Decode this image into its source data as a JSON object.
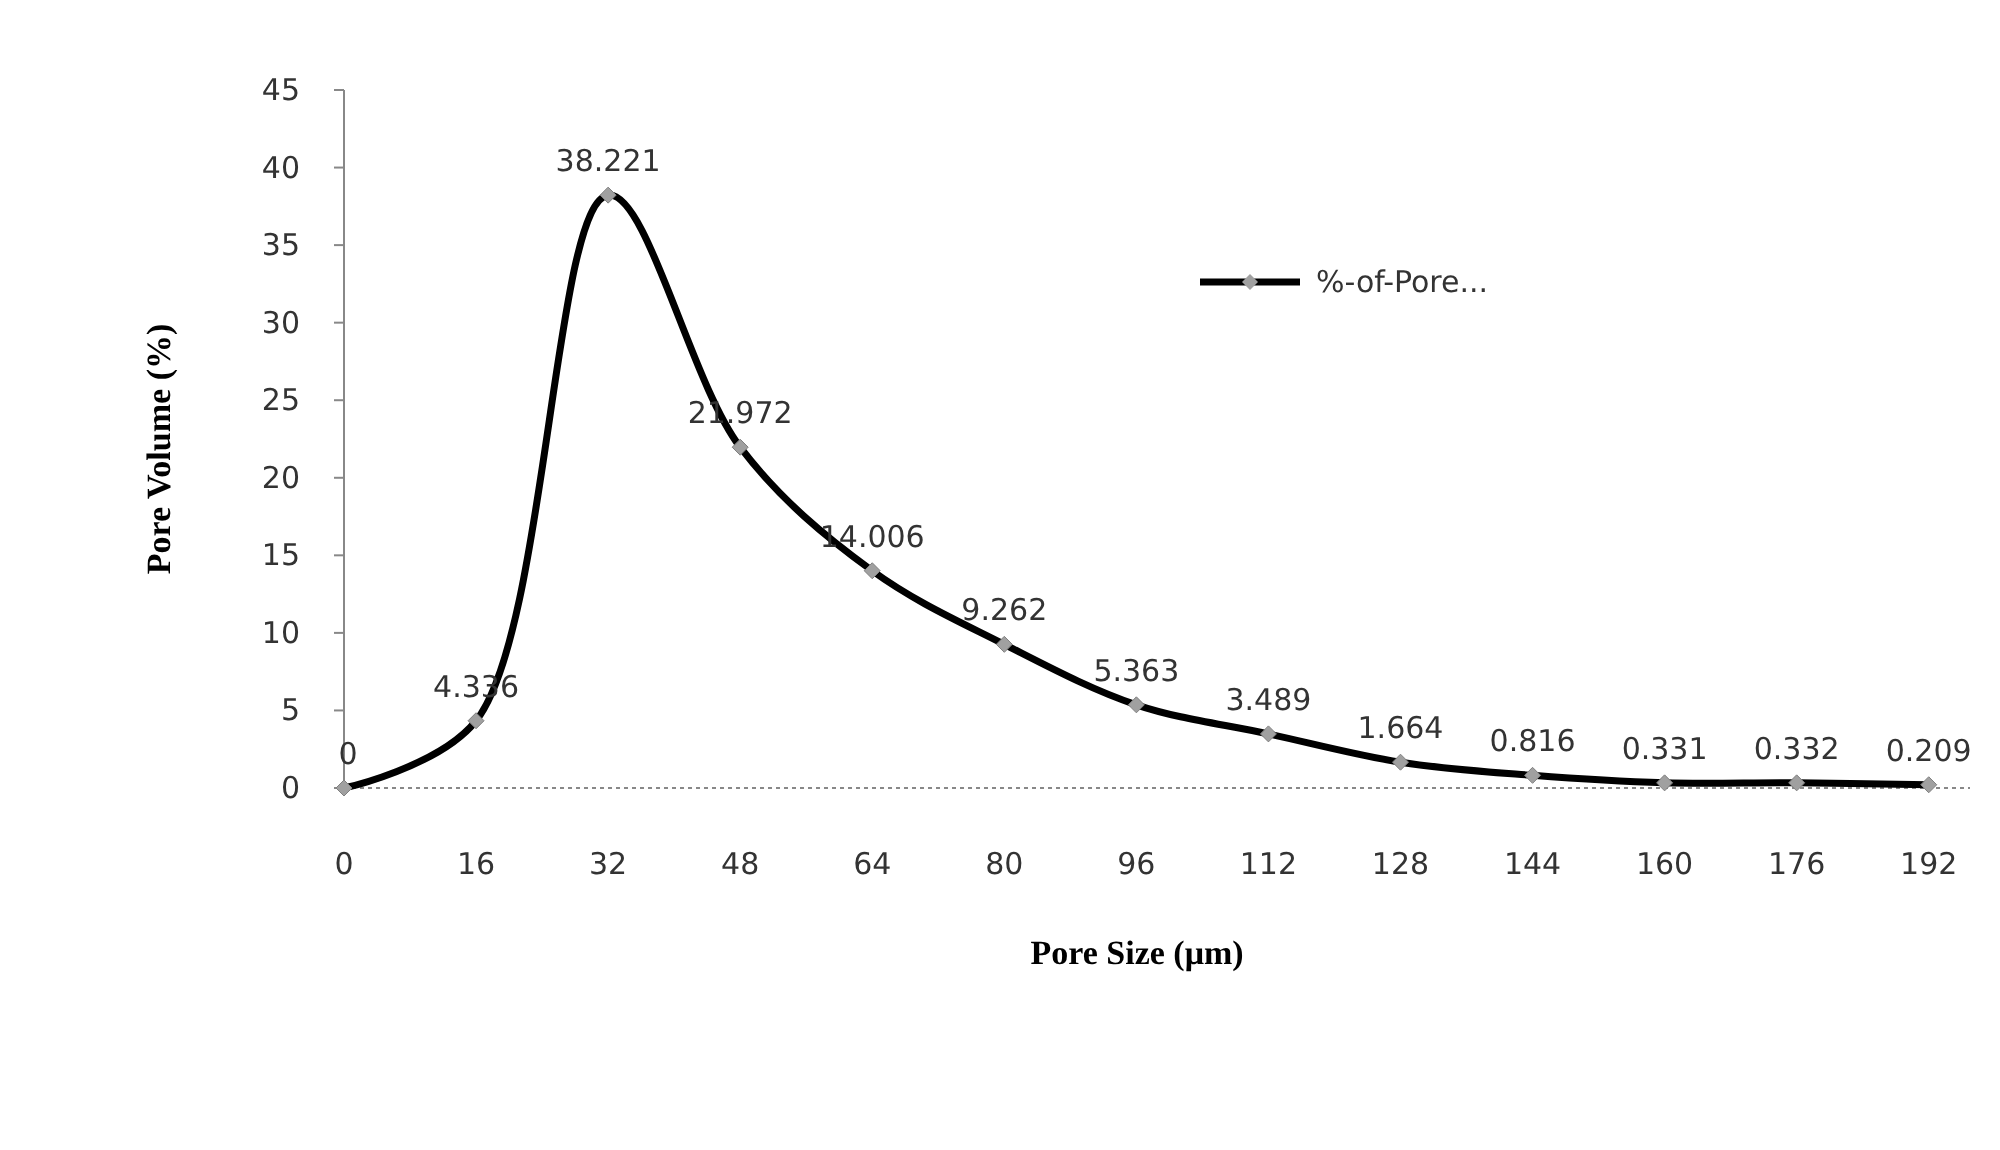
{
  "chart_data": {
    "type": "line",
    "xlabel": "Pore Size (μm)",
    "ylabel": "Pore Volume (%)",
    "x": [
      0,
      16,
      32,
      48,
      64,
      80,
      96,
      112,
      128,
      144,
      160,
      176,
      192
    ],
    "series": [
      {
        "name": "%-of-Pore...",
        "color": "#000000",
        "values": [
          0,
          4.336,
          38.221,
          21.972,
          14.006,
          9.262,
          5.363,
          3.489,
          1.664,
          0.816,
          0.331,
          0.332,
          0.209
        ]
      }
    ],
    "xlim": [
      0,
      197
    ],
    "xticks": [
      0,
      16,
      32,
      48,
      64,
      80,
      96,
      112,
      128,
      144,
      160,
      176,
      192
    ],
    "ylim": [
      0,
      45
    ],
    "yticks": [
      0,
      5,
      10,
      15,
      20,
      25,
      30,
      35,
      40,
      45
    ],
    "data_labels": true,
    "legend": "top right",
    "marker": "diamond",
    "line_style": "solid",
    "grid": false
  }
}
